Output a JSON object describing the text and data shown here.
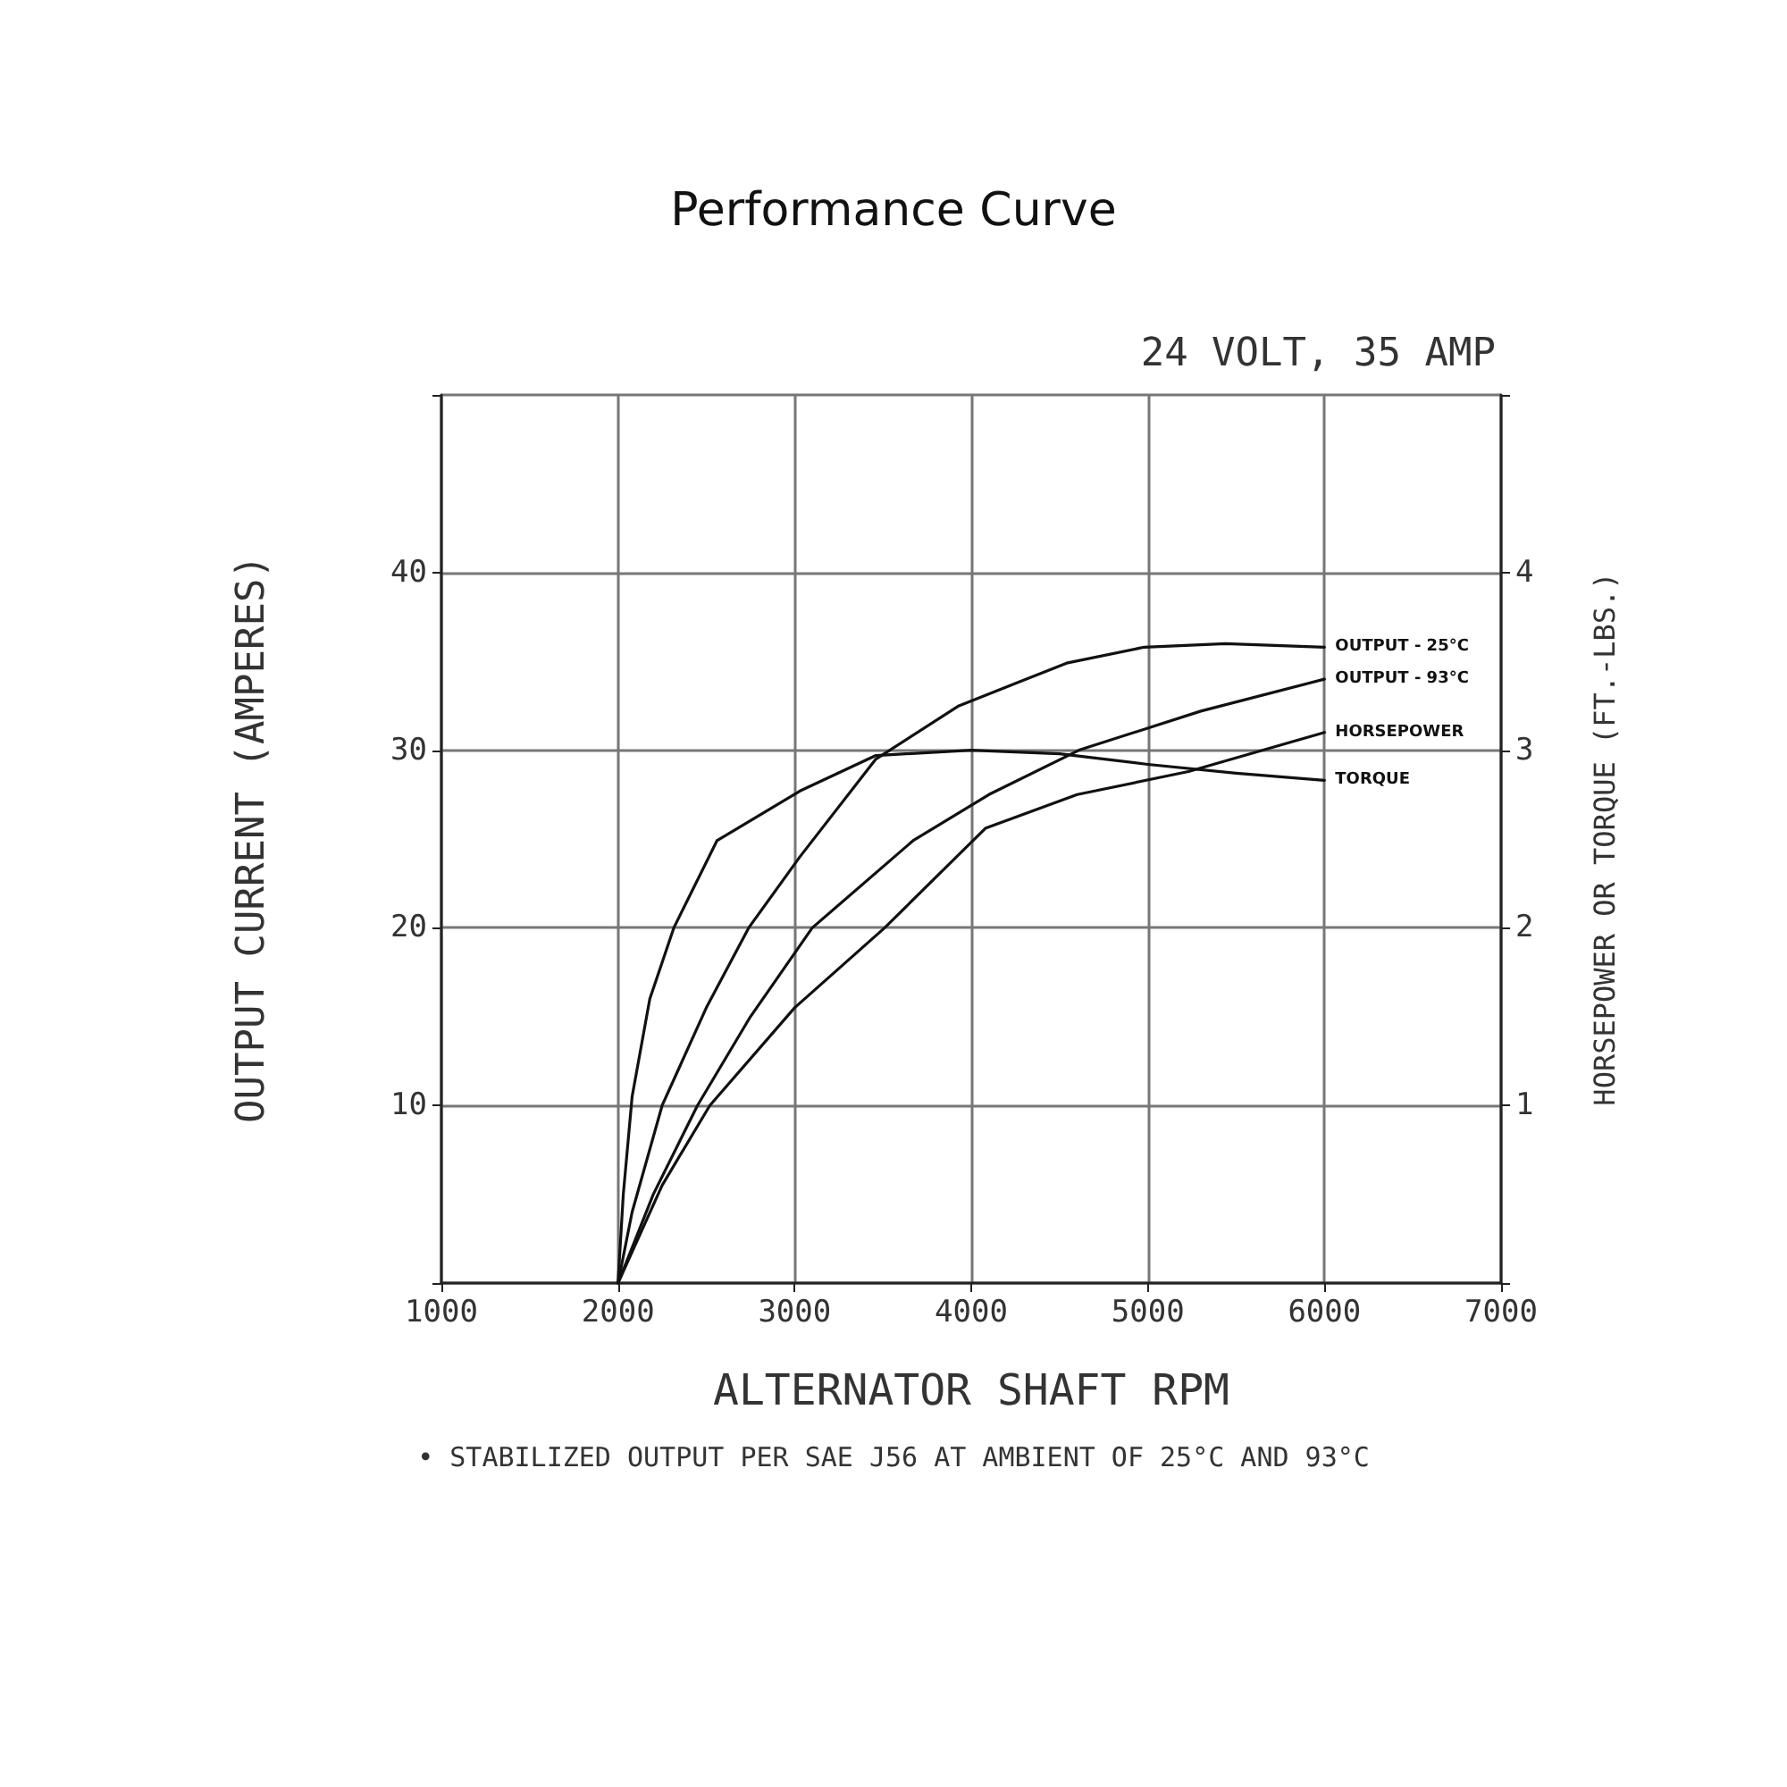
{
  "chart_data": {
    "type": "line",
    "title": "Performance Curve",
    "subtitle": "24 VOLT, 35 AMP",
    "xlabel": "ALTERNATOR SHAFT RPM",
    "ylabel": "OUTPUT CURRENT (AMPERES)",
    "y2label": "HORSEPOWER OR TORQUE (FT.-LBS.)",
    "annotations": [
      "• STABILIZED OUTPUT PER SAE J56 AT AMBIENT OF 25°C AND 93°C"
    ],
    "xlim": [
      1000,
      7000
    ],
    "xticks": [
      1000,
      2000,
      3000,
      4000,
      5000,
      6000,
      7000
    ],
    "ylim": [
      0,
      50
    ],
    "yticks": [
      {
        "value": 0,
        "label": null
      },
      10,
      20,
      30,
      40,
      {
        "value": 50,
        "label": null
      }
    ],
    "y2lim": [
      0,
      5
    ],
    "y2ticks": [
      {
        "value": 0,
        "label": null
      },
      1,
      2,
      3,
      4,
      {
        "value": 5,
        "label": null
      }
    ],
    "grid": true,
    "legend": false,
    "marker": "none",
    "line_style": "solid",
    "series": [
      {
        "name": "OUTPUT - 25°C",
        "color": "#111111",
        "x": [
          2000,
          2080,
          2250,
          2500,
          2740,
          3030,
          3460,
          3930,
          4540,
          4980,
          5440,
          6000
        ],
        "values": [
          0,
          4,
          10,
          15.5,
          20,
          24,
          29.5,
          32.5,
          34.9,
          35.8,
          36,
          35.8
        ]
      },
      {
        "name": "OUTPUT - 93°C",
        "color": "#111111",
        "x": [
          2000,
          2200,
          2450,
          2750,
          3100,
          3670,
          4100,
          4610,
          5300,
          6000
        ],
        "values": [
          0,
          5,
          10,
          15,
          20,
          24.9,
          27.5,
          30,
          32.2,
          34
        ]
      },
      {
        "name": "TORQUE",
        "color": "#111111",
        "axis": "y2",
        "x": [
          2000,
          2030,
          2080,
          2180,
          2316,
          2560,
          3030,
          3460,
          4000,
          4500,
          5000,
          5500,
          6000
        ],
        "values": [
          0,
          0.5,
          1.05,
          1.6,
          2.0,
          2.49,
          2.77,
          2.97,
          3.0,
          2.98,
          2.92,
          2.87,
          2.83
        ]
      },
      {
        "name": "HORSEPOWER",
        "color": "#111111",
        "axis": "y2",
        "x": [
          2000,
          2250,
          2520,
          3000,
          3510,
          4080,
          4600,
          5230,
          6000
        ],
        "values": [
          0,
          0.55,
          1.0,
          1.55,
          2.0,
          2.56,
          2.75,
          2.88,
          3.1
        ]
      }
    ]
  }
}
